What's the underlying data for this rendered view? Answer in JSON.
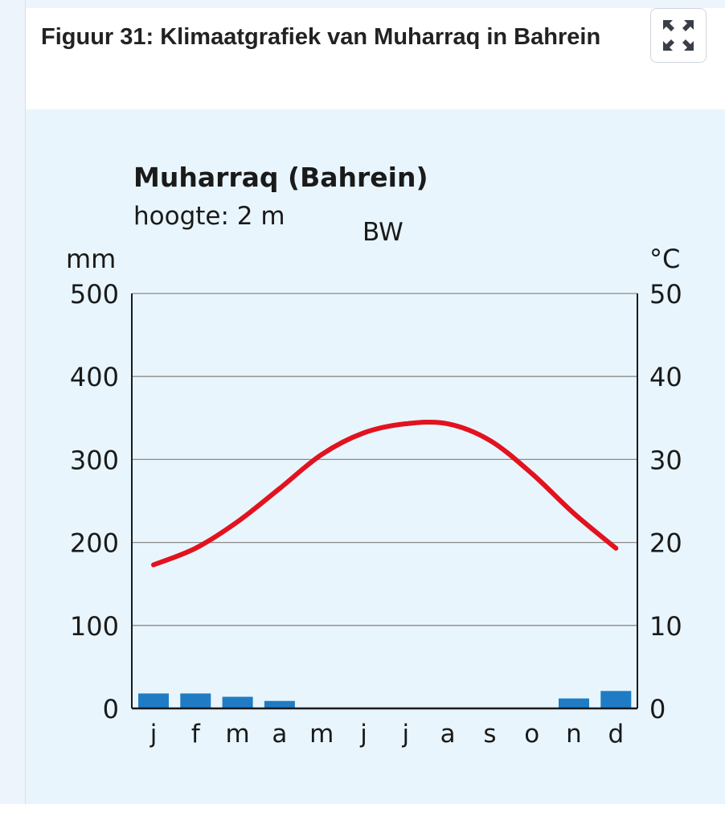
{
  "figure": {
    "caption": "Figuur 31: Klimaatgrafiek van Muharraq in Bahrein",
    "expand_icon": "expand-arrows-icon"
  },
  "chart_data": {
    "type": "climate-graph",
    "title": "Muharraq (Bahrein)",
    "subtitle": "hoogte: 2 m",
    "climate_code": "BW",
    "left_axis": {
      "unit": "mm",
      "ticks": [
        "500",
        "400",
        "300",
        "200",
        "100",
        "0"
      ],
      "range": [
        0,
        500
      ]
    },
    "right_axis": {
      "unit": "°C",
      "ticks": [
        "50",
        "40",
        "30",
        "20",
        "10",
        "0"
      ],
      "range": [
        0,
        50
      ]
    },
    "categories": [
      "j",
      "f",
      "m",
      "a",
      "m",
      "j",
      "j",
      "a",
      "s",
      "o",
      "n",
      "d"
    ],
    "series": [
      {
        "kind": "precipitation",
        "type": "bar",
        "axis": "left",
        "values": [
          18,
          18,
          14,
          9,
          0,
          0,
          0,
          0,
          0,
          0,
          12,
          21
        ],
        "color": "#1f7cc4"
      },
      {
        "kind": "temperature",
        "type": "line",
        "axis": "right",
        "values": [
          17.3,
          19.3,
          22.5,
          26.5,
          30.6,
          33.2,
          34.3,
          34.3,
          32.3,
          28.3,
          23.5,
          19.3
        ],
        "color": "#e2121f"
      }
    ],
    "grid": true,
    "colors": {
      "background": "#e8f5fc",
      "grid": "#8a8a8a",
      "axis": "#1a1a1a"
    }
  }
}
